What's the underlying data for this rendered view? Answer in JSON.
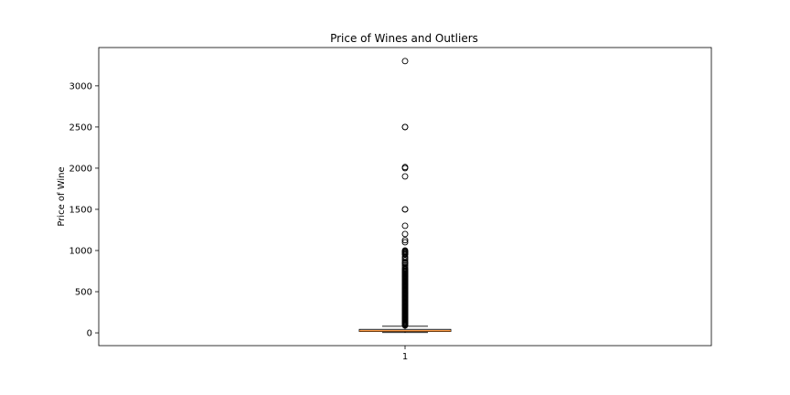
{
  "chart_data": {
    "type": "box",
    "title": "Price of Wines and Outliers",
    "ylabel": "Price of Wine",
    "xlabel": "",
    "categories": [
      "1"
    ],
    "ylim": [
      -155,
      3465
    ],
    "yticks": [
      0,
      500,
      1000,
      1500,
      2000,
      2500,
      3000
    ],
    "grid": false,
    "boxes": [
      {
        "category": "1",
        "whisker_low": 4,
        "q1": 17,
        "median": 25,
        "q3": 42,
        "whisker_high": 80,
        "outliers": [
          3300,
          2500,
          2500,
          2013,
          2000,
          1900,
          1500,
          1500,
          1300,
          1200,
          1125,
          1100,
          1000,
          990,
          980,
          970,
          960,
          950,
          920,
          900,
          880,
          860,
          850,
          840,
          820,
          800,
          780,
          770,
          760,
          750,
          740,
          730,
          720,
          710,
          700,
          690,
          680,
          670,
          660,
          650,
          640,
          630,
          620,
          610,
          600,
          590,
          580,
          570,
          560,
          550,
          540,
          530,
          520,
          510,
          500,
          490,
          480,
          470,
          460,
          450,
          440,
          430,
          420,
          410,
          400,
          390,
          380,
          370,
          360,
          350,
          340,
          330,
          320,
          310,
          300,
          290,
          280,
          270,
          260,
          250,
          240,
          230,
          220,
          210,
          200,
          190,
          180,
          170,
          160,
          150,
          140,
          130,
          120,
          110,
          100,
          90
        ]
      }
    ]
  }
}
